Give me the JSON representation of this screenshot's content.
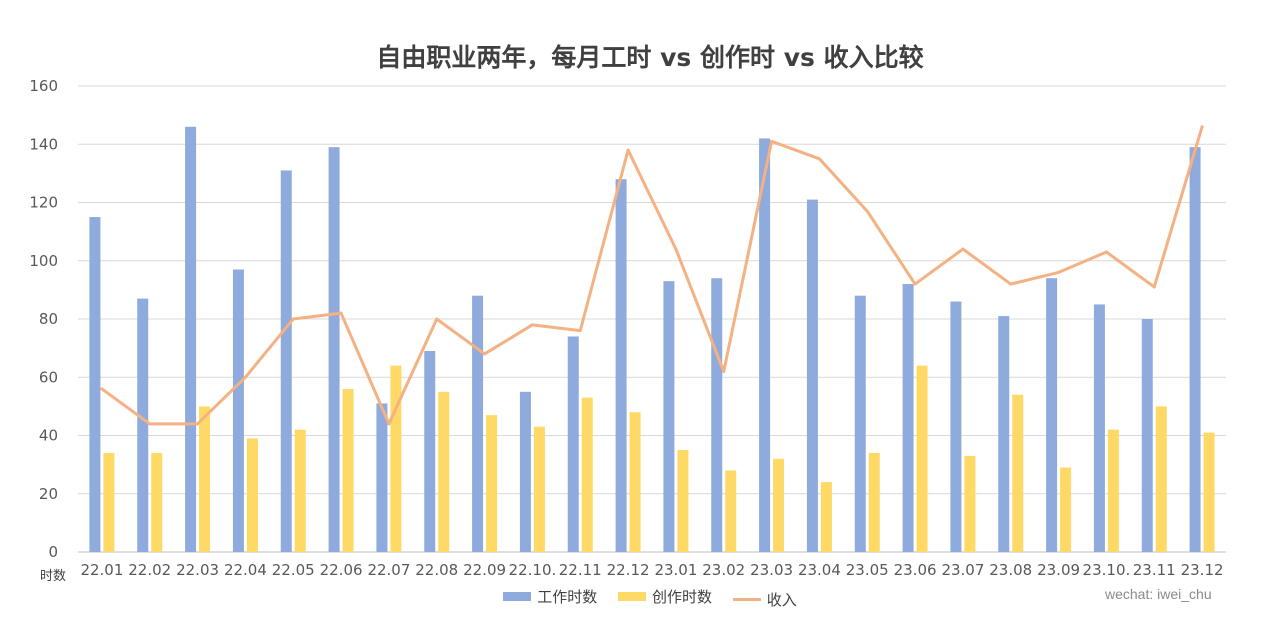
{
  "chart_data": {
    "type": "bar",
    "title": "自由职业两年，每月工时 vs 创作时 vs 收入比较",
    "ylabel": "时数",
    "ylim": [
      0,
      160
    ],
    "yticks": [
      0,
      20,
      40,
      60,
      80,
      100,
      120,
      140,
      160
    ],
    "grid": true,
    "legend_position": "bottom",
    "categories": [
      "22.01",
      "22.02",
      "22.03",
      "22.04",
      "22.05",
      "22.06",
      "22.07",
      "22.08",
      "22.09",
      "22.10.",
      "22.11",
      "22.12",
      "23.01",
      "23.02",
      "23.03",
      "23.04",
      "23.05",
      "23.06",
      "23.07",
      "23.08",
      "23.09",
      "23.10.",
      "23.11",
      "23.12"
    ],
    "series": [
      {
        "name": "工作时数",
        "kind": "bar",
        "color": "#8faadc",
        "values": [
          115,
          87,
          146,
          97,
          131,
          139,
          51,
          69,
          88,
          55,
          74,
          128,
          93,
          94,
          142,
          121,
          88,
          92,
          86,
          81,
          94,
          85,
          80,
          139
        ]
      },
      {
        "name": "创作时数",
        "kind": "bar",
        "color": "#ffd966",
        "values": [
          34,
          34,
          50,
          39,
          42,
          56,
          64,
          55,
          47,
          43,
          53,
          48,
          35,
          28,
          32,
          24,
          34,
          64,
          33,
          54,
          29,
          42,
          50,
          41
        ]
      },
      {
        "name": "收入",
        "kind": "line",
        "color": "#f4b183",
        "values": [
          56,
          44,
          44,
          60,
          80,
          82,
          44,
          80,
          68,
          78,
          76,
          138,
          104,
          62,
          141,
          135,
          117,
          92,
          104,
          92,
          96,
          103,
          91,
          146
        ]
      }
    ]
  },
  "watermark": "wechat: iwei_chu"
}
